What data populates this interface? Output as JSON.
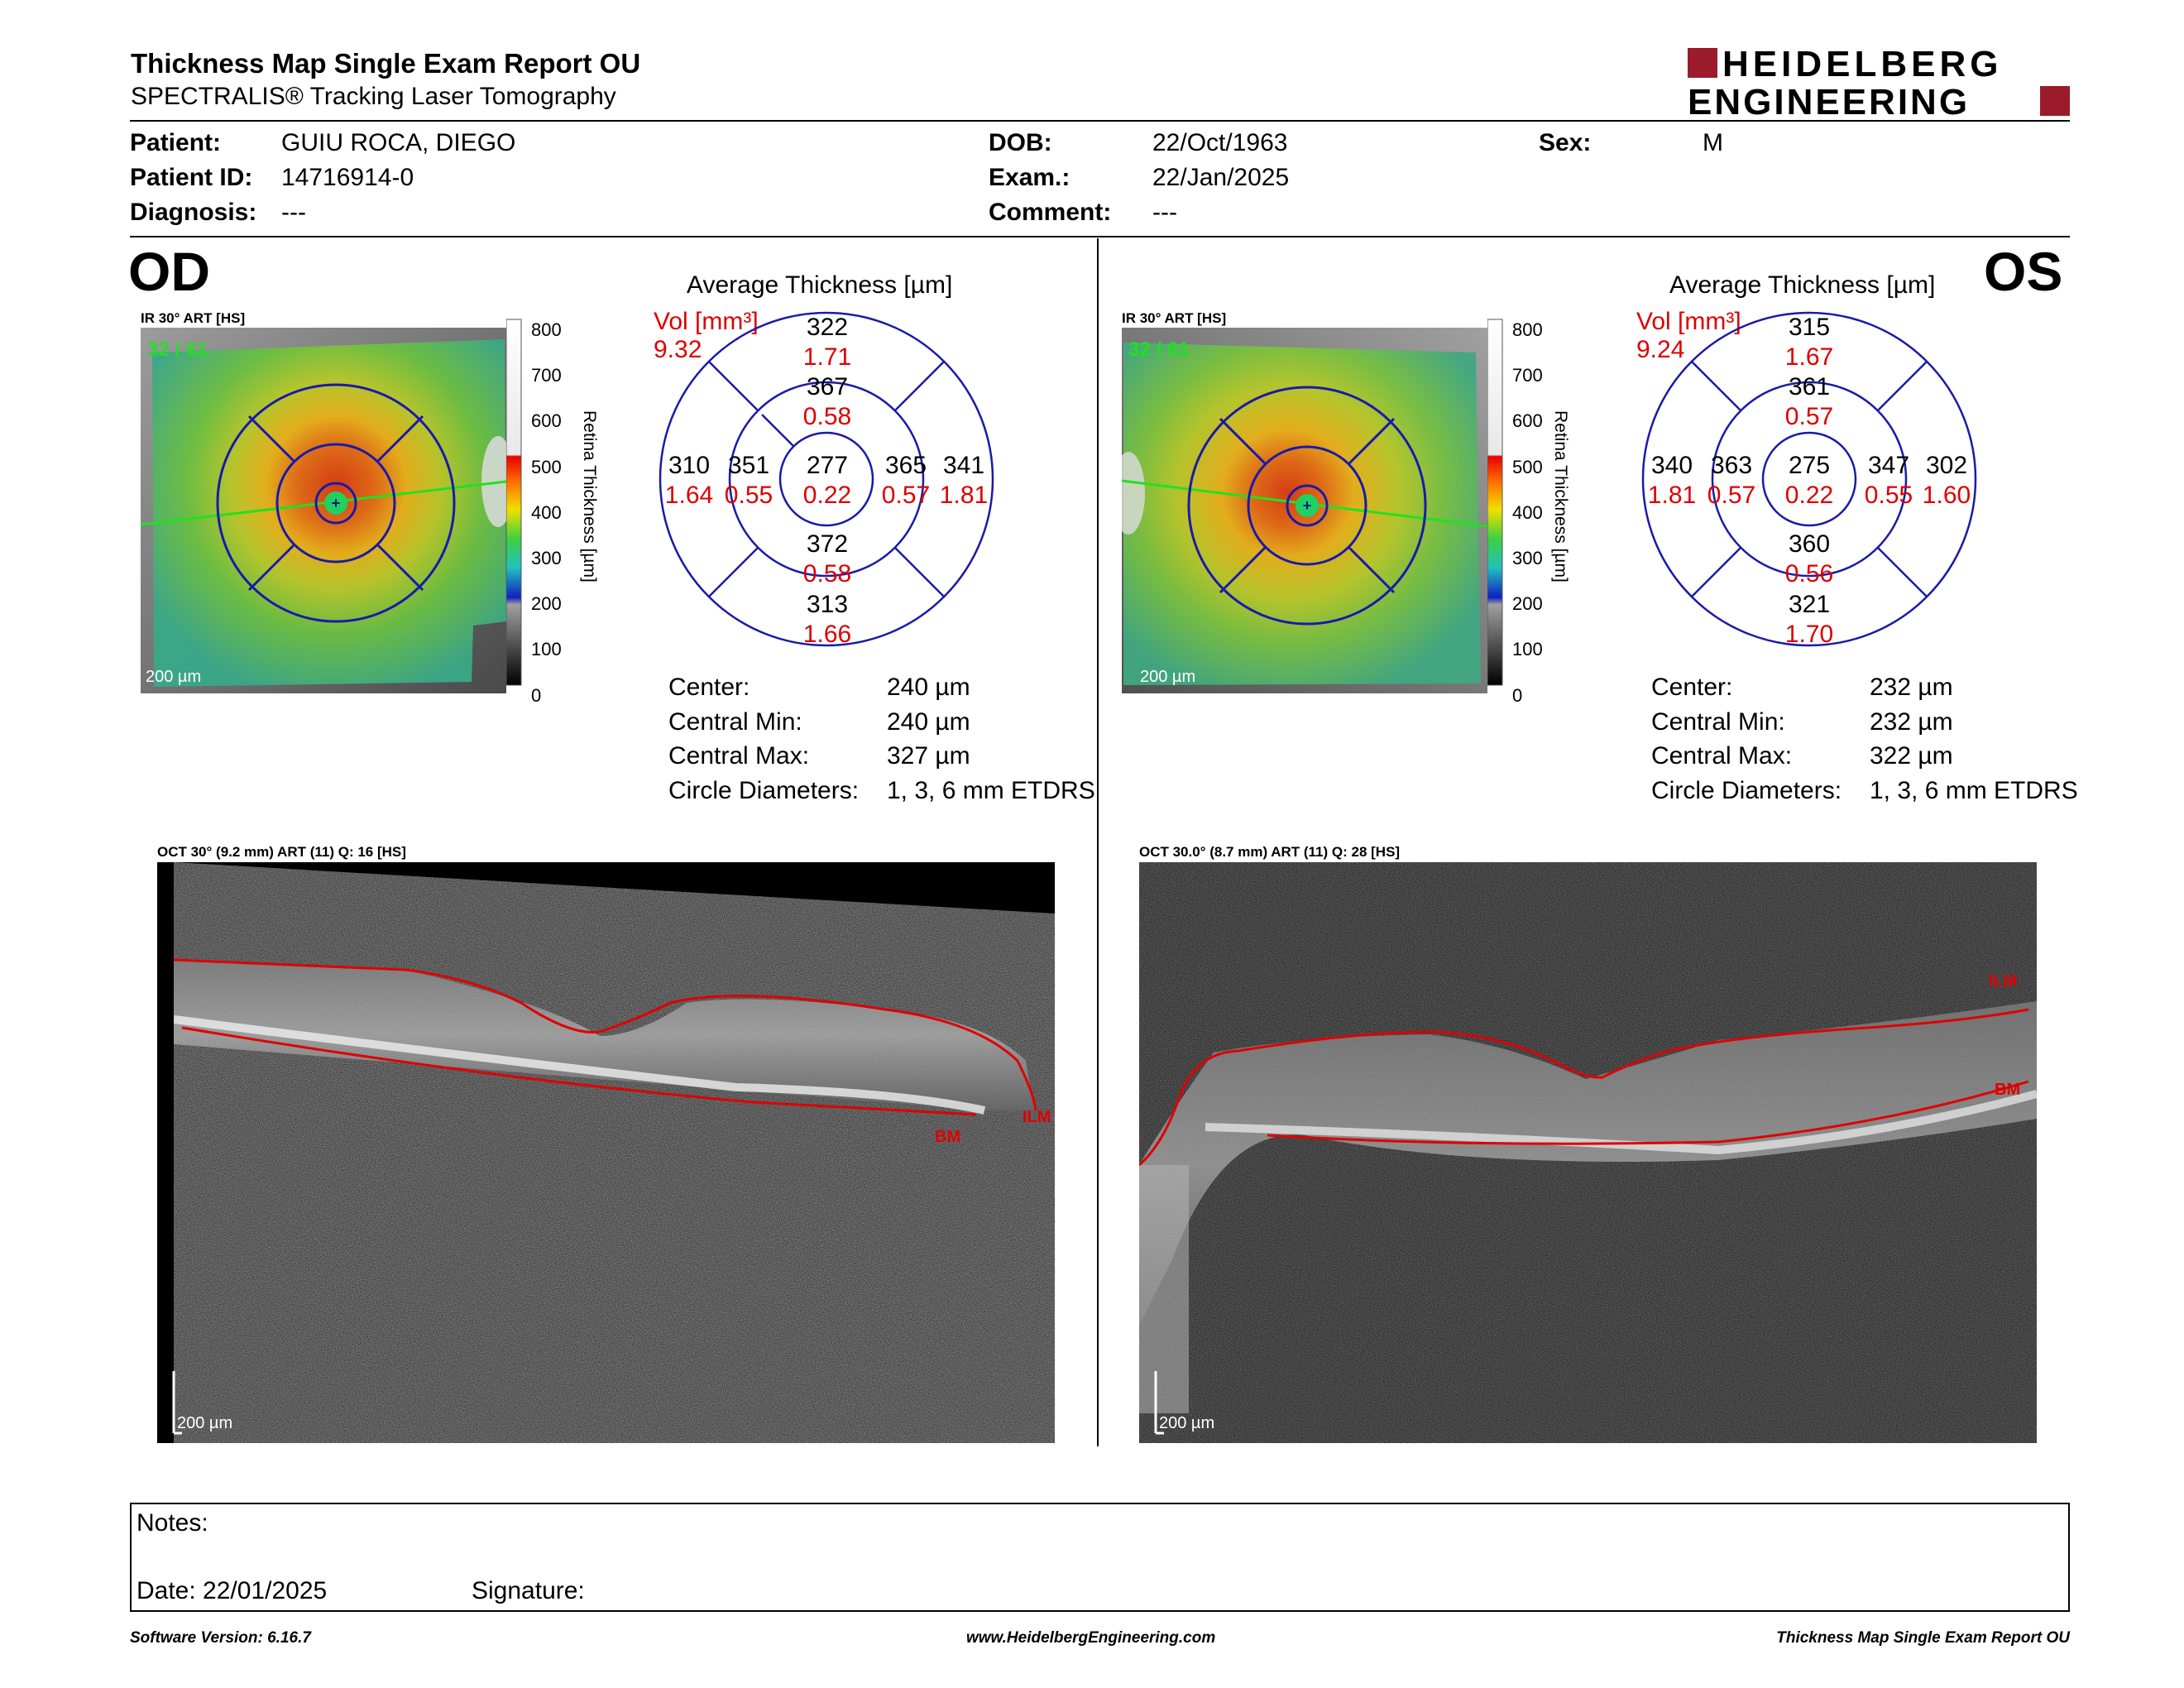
{
  "header": {
    "title": "Thickness Map Single Exam Report OU",
    "subtitle": "SPECTRALIS® Tracking Laser Tomography",
    "logo_line1": "HEIDELBERG",
    "logo_line2": "ENGINEERING",
    "logo_color": "#9b1b2b"
  },
  "patient": {
    "patient_label": "Patient:",
    "patient_name": "GUIU ROCA, DIEGO",
    "id_label": "Patient ID:",
    "id_value": "14716914-0",
    "diagnosis_label": "Diagnosis:",
    "diagnosis_value": "---",
    "dob_label": "DOB:",
    "dob_value": "22/Oct/1963",
    "exam_label": "Exam.:",
    "exam_value": "22/Jan/2025",
    "comment_label": "Comment:",
    "comment_value": "---",
    "sex_label": "Sex:",
    "sex_value": "M"
  },
  "colorbar": {
    "ticks": [
      "800",
      "700",
      "600",
      "500",
      "400",
      "300",
      "200",
      "100",
      "0"
    ],
    "label": "Retina Thickness [µm]"
  },
  "od": {
    "eye": "OD",
    "ir_label": "IR 30° ART [HS]",
    "frames": "32 / 61",
    "scale": "200 µm",
    "avg_title": "Average Thickness [µm]",
    "vol_label": "Vol [mm³]",
    "vol_value": "9.32",
    "grid": {
      "center": {
        "t": "277",
        "v": "0.22"
      },
      "inner_superior": {
        "t": "367",
        "v": "0.58"
      },
      "inner_inferior": {
        "t": "372",
        "v": "0.58"
      },
      "inner_left": {
        "t": "351",
        "v": "0.55"
      },
      "inner_right": {
        "t": "365",
        "v": "0.57"
      },
      "outer_superior": {
        "t": "322",
        "v": "1.71"
      },
      "outer_inferior": {
        "t": "313",
        "v": "1.66"
      },
      "outer_left": {
        "t": "310",
        "v": "1.64"
      },
      "outer_right": {
        "t": "341",
        "v": "1.81"
      }
    },
    "stats": {
      "center_label": "Center:",
      "center_value": "240 µm",
      "min_label": "Central Min:",
      "min_value": "240 µm",
      "max_label": "Central Max:",
      "max_value": "327 µm",
      "diam_label": "Circle Diameters:",
      "diam_value": "1, 3, 6 mm ETDRS"
    },
    "oct_label": "OCT 30° (9.2 mm) ART (11) Q: 16 [HS]",
    "oct_scale": "200 µm",
    "ilm": "ILM",
    "bm": "BM"
  },
  "os": {
    "eye": "OS",
    "ir_label": "IR 30° ART [HS]",
    "frames": "32 / 61",
    "scale": "200 µm",
    "avg_title": "Average Thickness [µm]",
    "vol_label": "Vol [mm³]",
    "vol_value": "9.24",
    "grid": {
      "center": {
        "t": "275",
        "v": "0.22"
      },
      "inner_superior": {
        "t": "361",
        "v": "0.57"
      },
      "inner_inferior": {
        "t": "360",
        "v": "0.56"
      },
      "inner_left": {
        "t": "363",
        "v": "0.57"
      },
      "inner_right": {
        "t": "347",
        "v": "0.55"
      },
      "outer_superior": {
        "t": "315",
        "v": "1.67"
      },
      "outer_inferior": {
        "t": "321",
        "v": "1.70"
      },
      "outer_left": {
        "t": "340",
        "v": "1.81"
      },
      "outer_right": {
        "t": "302",
        "v": "1.60"
      }
    },
    "stats": {
      "center_label": "Center:",
      "center_value": "232 µm",
      "min_label": "Central Min:",
      "min_value": "232 µm",
      "max_label": "Central Max:",
      "max_value": "322 µm",
      "diam_label": "Circle Diameters:",
      "diam_value": "1, 3, 6 mm ETDRS"
    },
    "oct_label": "OCT 30.0° (8.7 mm) ART (11) Q: 28 [HS]",
    "oct_scale": "200 µm",
    "ilm": "ILM",
    "bm": "BM"
  },
  "notes": {
    "notes_label": "Notes:",
    "date_label": "Date: 22/01/2025",
    "signature_label": "Signature:"
  },
  "footer": {
    "software": "Software Version: 6.16.7",
    "website": "www.HeidelbergEngineering.com",
    "report": "Thickness Map Single Exam Report OU"
  }
}
